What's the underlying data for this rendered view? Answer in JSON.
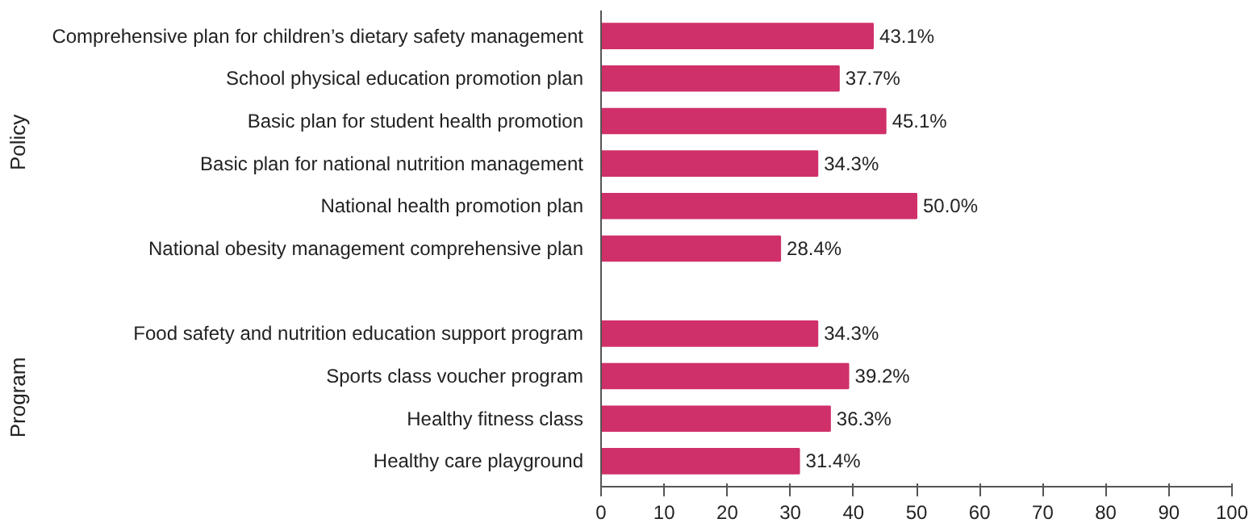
{
  "chart_data": {
    "type": "bar",
    "orientation": "horizontal",
    "categories": [
      "Comprehensive plan for children’s dietary safety management",
      "School physical education promotion plan",
      "Basic plan for student health promotion",
      "Basic plan for national nutrition management",
      "National health promotion plan",
      "National obesity management comprehensive plan",
      null,
      "Food safety and nutrition education support program",
      "Sports class voucher program",
      "Healthy fitness class",
      "Healthy care playground"
    ],
    "values": [
      43.1,
      37.7,
      45.1,
      34.3,
      50.0,
      28.4,
      null,
      34.3,
      39.2,
      36.3,
      31.4
    ],
    "value_labels": [
      "43.1%",
      "37.7%",
      "45.1%",
      "34.3%",
      "50.0%",
      "28.4%",
      null,
      "34.3%",
      "39.2%",
      "36.3%",
      "31.4%"
    ],
    "color": "#d0306a",
    "xlim": [
      0,
      100
    ],
    "xticks": [
      0,
      10,
      20,
      30,
      40,
      50,
      60,
      70,
      80,
      90,
      100
    ],
    "annotations": [
      "Policy",
      "Program"
    ],
    "grid": false
  }
}
